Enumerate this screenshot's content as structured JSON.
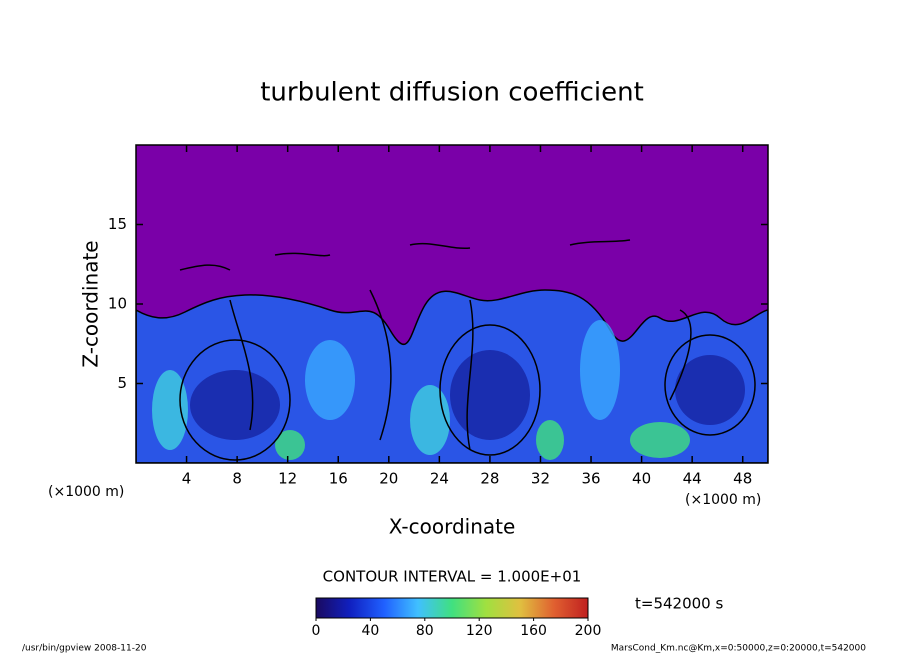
{
  "chart_data": {
    "type": "contour",
    "title": "turbulent diffusion coefficient",
    "xlabel": "X-coordinate",
    "ylabel": "Z-coordinate",
    "x_unit_label": "(×1000 m)",
    "xlim": [
      0,
      50
    ],
    "xticks": [
      4,
      8,
      12,
      16,
      20,
      24,
      28,
      32,
      36,
      40,
      44,
      48
    ],
    "ylim": [
      0,
      20
    ],
    "yticks": [
      5,
      10,
      15
    ],
    "contour_interval_label": "CONTOUR INTERVAL = 1.000E+01",
    "time_label": "t=542000 s",
    "colorbar": {
      "lim": [
        0,
        200
      ],
      "ticks": [
        0,
        40,
        80,
        120,
        160,
        200
      ],
      "colors": [
        "#1a0a60",
        "#1020c0",
        "#2060ff",
        "#40c0ff",
        "#40e080",
        "#a0e040",
        "#e0c040",
        "#e06030",
        "#c02020"
      ]
    },
    "footer_left": "/usr/bin/gpview  2008-11-20",
    "footer_right": "MarsCond_Km.nc@Km,x=0:50000,z=0:20000,t=542000"
  }
}
